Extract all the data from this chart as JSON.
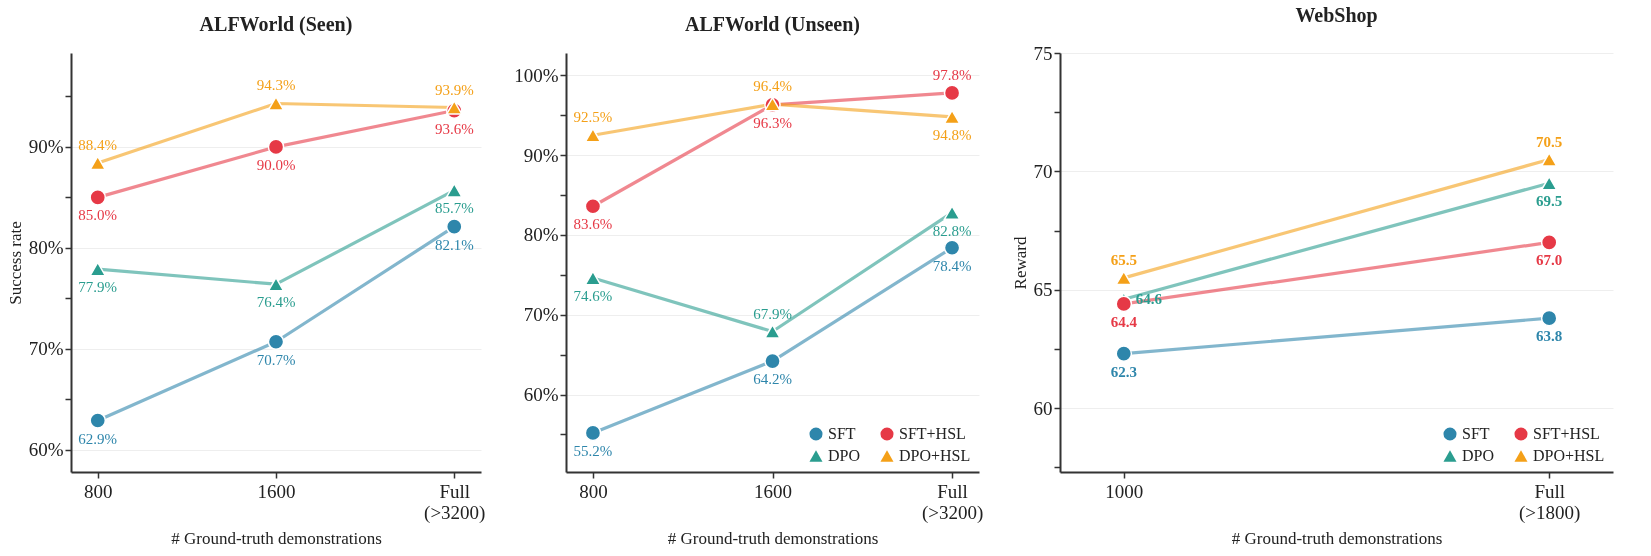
{
  "chart_data": [
    {
      "type": "line",
      "title": "ALFWorld (Seen)",
      "xlabel": "# Ground-truth demonstrations",
      "ylabel": "Success rate",
      "categories": [
        "800",
        "1600",
        "Full\n(>3200)"
      ],
      "ylim": [
        57.8,
        99.3
      ],
      "yticks": [
        {
          "value": 60,
          "label": "60%"
        },
        {
          "value": 65,
          "label": null
        },
        {
          "value": 70,
          "label": "70%"
        },
        {
          "value": 75,
          "label": null
        },
        {
          "value": 80,
          "label": "80%"
        },
        {
          "value": 85,
          "label": null
        },
        {
          "value": 90,
          "label": "90%"
        },
        {
          "value": 95,
          "label": null
        }
      ],
      "grid": "y",
      "legend": false,
      "series": [
        {
          "color": "#2e86ab",
          "marker": "circle",
          "values": [
            62.9,
            70.7,
            82.1
          ],
          "value_labels": [
            "62.9%",
            "70.7%",
            "82.1%"
          ]
        },
        {
          "color": "#2a9d8f",
          "marker": "triangle",
          "values": [
            77.9,
            76.4,
            85.7
          ],
          "value_labels": [
            "77.9%",
            "76.4%",
            "85.7%"
          ]
        },
        {
          "color": "#e63946",
          "marker": "circle",
          "values": [
            85.0,
            90.0,
            93.6
          ],
          "value_labels": [
            "85.0%",
            "90.0%",
            "93.6%"
          ]
        },
        {
          "color": "#f4a018",
          "marker": "triangle",
          "values": [
            88.4,
            94.3,
            93.9
          ],
          "value_labels": [
            "88.4%",
            "94.3%",
            "93.9%"
          ]
        }
      ]
    },
    {
      "type": "line",
      "title": "ALFWorld (Unseen)",
      "xlabel": "# Ground-truth demonstrations",
      "categories": [
        "800",
        "1600",
        "Full\n(>3200)"
      ],
      "ylim": [
        50.3,
        102.8
      ],
      "yticks": [
        {
          "value": 55,
          "label": null
        },
        {
          "value": 60,
          "label": "60%"
        },
        {
          "value": 65,
          "label": null
        },
        {
          "value": 70,
          "label": "70%"
        },
        {
          "value": 75,
          "label": null
        },
        {
          "value": 80,
          "label": "80%"
        },
        {
          "value": 85,
          "label": null
        },
        {
          "value": 90,
          "label": "90%"
        },
        {
          "value": 95,
          "label": null
        },
        {
          "value": 100,
          "label": "100%"
        }
      ],
      "grid": "y",
      "legend": "bottom right",
      "series": [
        {
          "name": "SFT",
          "color": "#2e86ab",
          "marker": "circle",
          "values": [
            55.2,
            64.2,
            78.4
          ],
          "value_labels": [
            "55.2%",
            "64.2%",
            "78.4%"
          ]
        },
        {
          "name": "DPO",
          "color": "#2a9d8f",
          "marker": "triangle",
          "values": [
            74.6,
            67.9,
            82.8
          ],
          "value_labels": [
            "74.6%",
            "67.9%",
            "82.8%"
          ]
        },
        {
          "name": "SFT+HSL",
          "color": "#e63946",
          "marker": "circle",
          "values": [
            83.6,
            96.3,
            97.8
          ],
          "value_labels": [
            "83.6%",
            "96.3%",
            "97.8%"
          ]
        },
        {
          "name": "DPO+HSL",
          "color": "#f4a018",
          "marker": "triangle",
          "values": [
            92.5,
            96.4,
            94.8
          ],
          "value_labels": [
            "92.5%",
            "96.4%",
            "94.8%"
          ]
        }
      ]
    },
    {
      "type": "line",
      "title": "WebShop",
      "xlabel": "# Ground-truth demonstrations",
      "ylabel": "Reward",
      "categories": [
        "1000",
        "Full\n(>1800)"
      ],
      "ylim": [
        57.3,
        75
      ],
      "yticks": [
        {
          "value": 57.5,
          "label": null
        },
        60,
        {
          "value": 62.5,
          "label": null
        },
        65,
        {
          "value": 67.5,
          "label": null
        },
        70,
        {
          "value": 72.5,
          "label": null
        },
        75
      ],
      "grid": "y",
      "legend": "bottom right",
      "series": [
        {
          "name": "SFT",
          "color": "#2e86ab",
          "marker": "circle",
          "values": [
            62.3,
            63.8
          ],
          "value_labels": [
            "62.3",
            "63.8"
          ]
        },
        {
          "name": "DPO",
          "color": "#2a9d8f",
          "marker": "triangle",
          "values": [
            64.6,
            69.5
          ],
          "value_labels": [
            "64.6",
            "69.5"
          ]
        },
        {
          "name": "SFT+HSL",
          "color": "#e63946",
          "marker": "circle",
          "values": [
            64.4,
            67.0
          ],
          "value_labels": [
            "64.4",
            "67.0"
          ]
        },
        {
          "name": "DPO+HSL",
          "color": "#f4a018",
          "marker": "triangle",
          "values": [
            65.5,
            70.5
          ],
          "value_labels": [
            "65.5",
            "70.5"
          ]
        }
      ]
    }
  ]
}
